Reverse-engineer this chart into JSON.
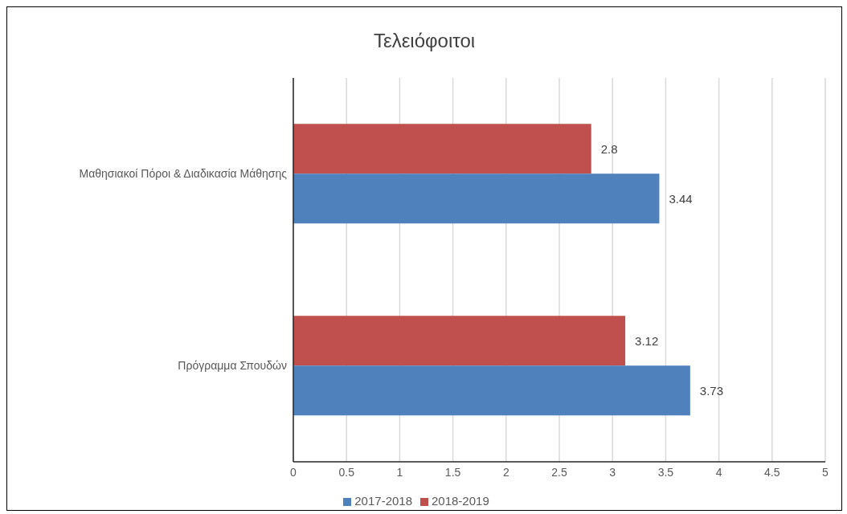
{
  "chart_data": {
    "type": "bar",
    "orientation": "horizontal",
    "title": "Τελειόφοιτοι",
    "categories": [
      "Μαθησιακοί Πόροι & Διαδικασία Μάθησης",
      "Πρόγραμμα Σπουδών"
    ],
    "series": [
      {
        "name": "2018-2019",
        "color": "#c0504d",
        "values": [
          2.8,
          3.12
        ]
      },
      {
        "name": "2017-2018",
        "color": "#4f81bd",
        "values": [
          3.44,
          3.73
        ]
      }
    ],
    "xlim": [
      0,
      5
    ],
    "xticks": [
      0,
      0.5,
      1,
      1.5,
      2,
      2.5,
      3,
      3.5,
      4,
      4.5,
      5
    ],
    "grid": "x",
    "legend": "bottom",
    "data_labels": true
  }
}
